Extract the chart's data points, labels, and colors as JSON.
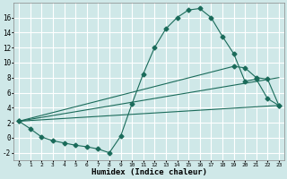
{
  "xlabel": "Humidex (Indice chaleur)",
  "bg_color": "#cfe8e8",
  "grid_color": "#ffffff",
  "line_color": "#1a6b5a",
  "xlim": [
    -0.5,
    23.5
  ],
  "ylim": [
    -3,
    18
  ],
  "xticks": [
    0,
    1,
    2,
    3,
    4,
    5,
    6,
    7,
    8,
    9,
    10,
    11,
    12,
    13,
    14,
    15,
    16,
    17,
    18,
    19,
    20,
    21,
    22,
    23
  ],
  "yticks": [
    -2,
    0,
    2,
    4,
    6,
    8,
    10,
    12,
    14,
    16
  ],
  "line1_x": [
    0,
    1,
    2,
    3,
    4,
    5,
    6,
    7,
    8,
    9,
    10,
    11,
    12,
    13,
    14,
    15,
    16,
    17,
    18,
    19,
    20,
    21,
    22,
    23
  ],
  "line1_y": [
    2.2,
    1.2,
    0.1,
    -0.4,
    -0.7,
    -1.0,
    -1.2,
    -1.5,
    -2.0,
    0.2,
    4.5,
    8.5,
    12.0,
    14.5,
    16.0,
    17.0,
    17.2,
    16.0,
    13.5,
    11.2,
    7.5,
    7.8,
    5.2,
    4.3
  ],
  "line2_x": [
    0,
    19,
    20,
    21,
    22,
    23
  ],
  "line2_y": [
    2.2,
    9.5,
    9.3,
    8.0,
    7.8,
    4.3
  ],
  "line3_x": [
    0,
    23
  ],
  "line3_y": [
    2.2,
    8.0
  ],
  "line4_x": [
    0,
    23
  ],
  "line4_y": [
    2.2,
    4.3
  ]
}
